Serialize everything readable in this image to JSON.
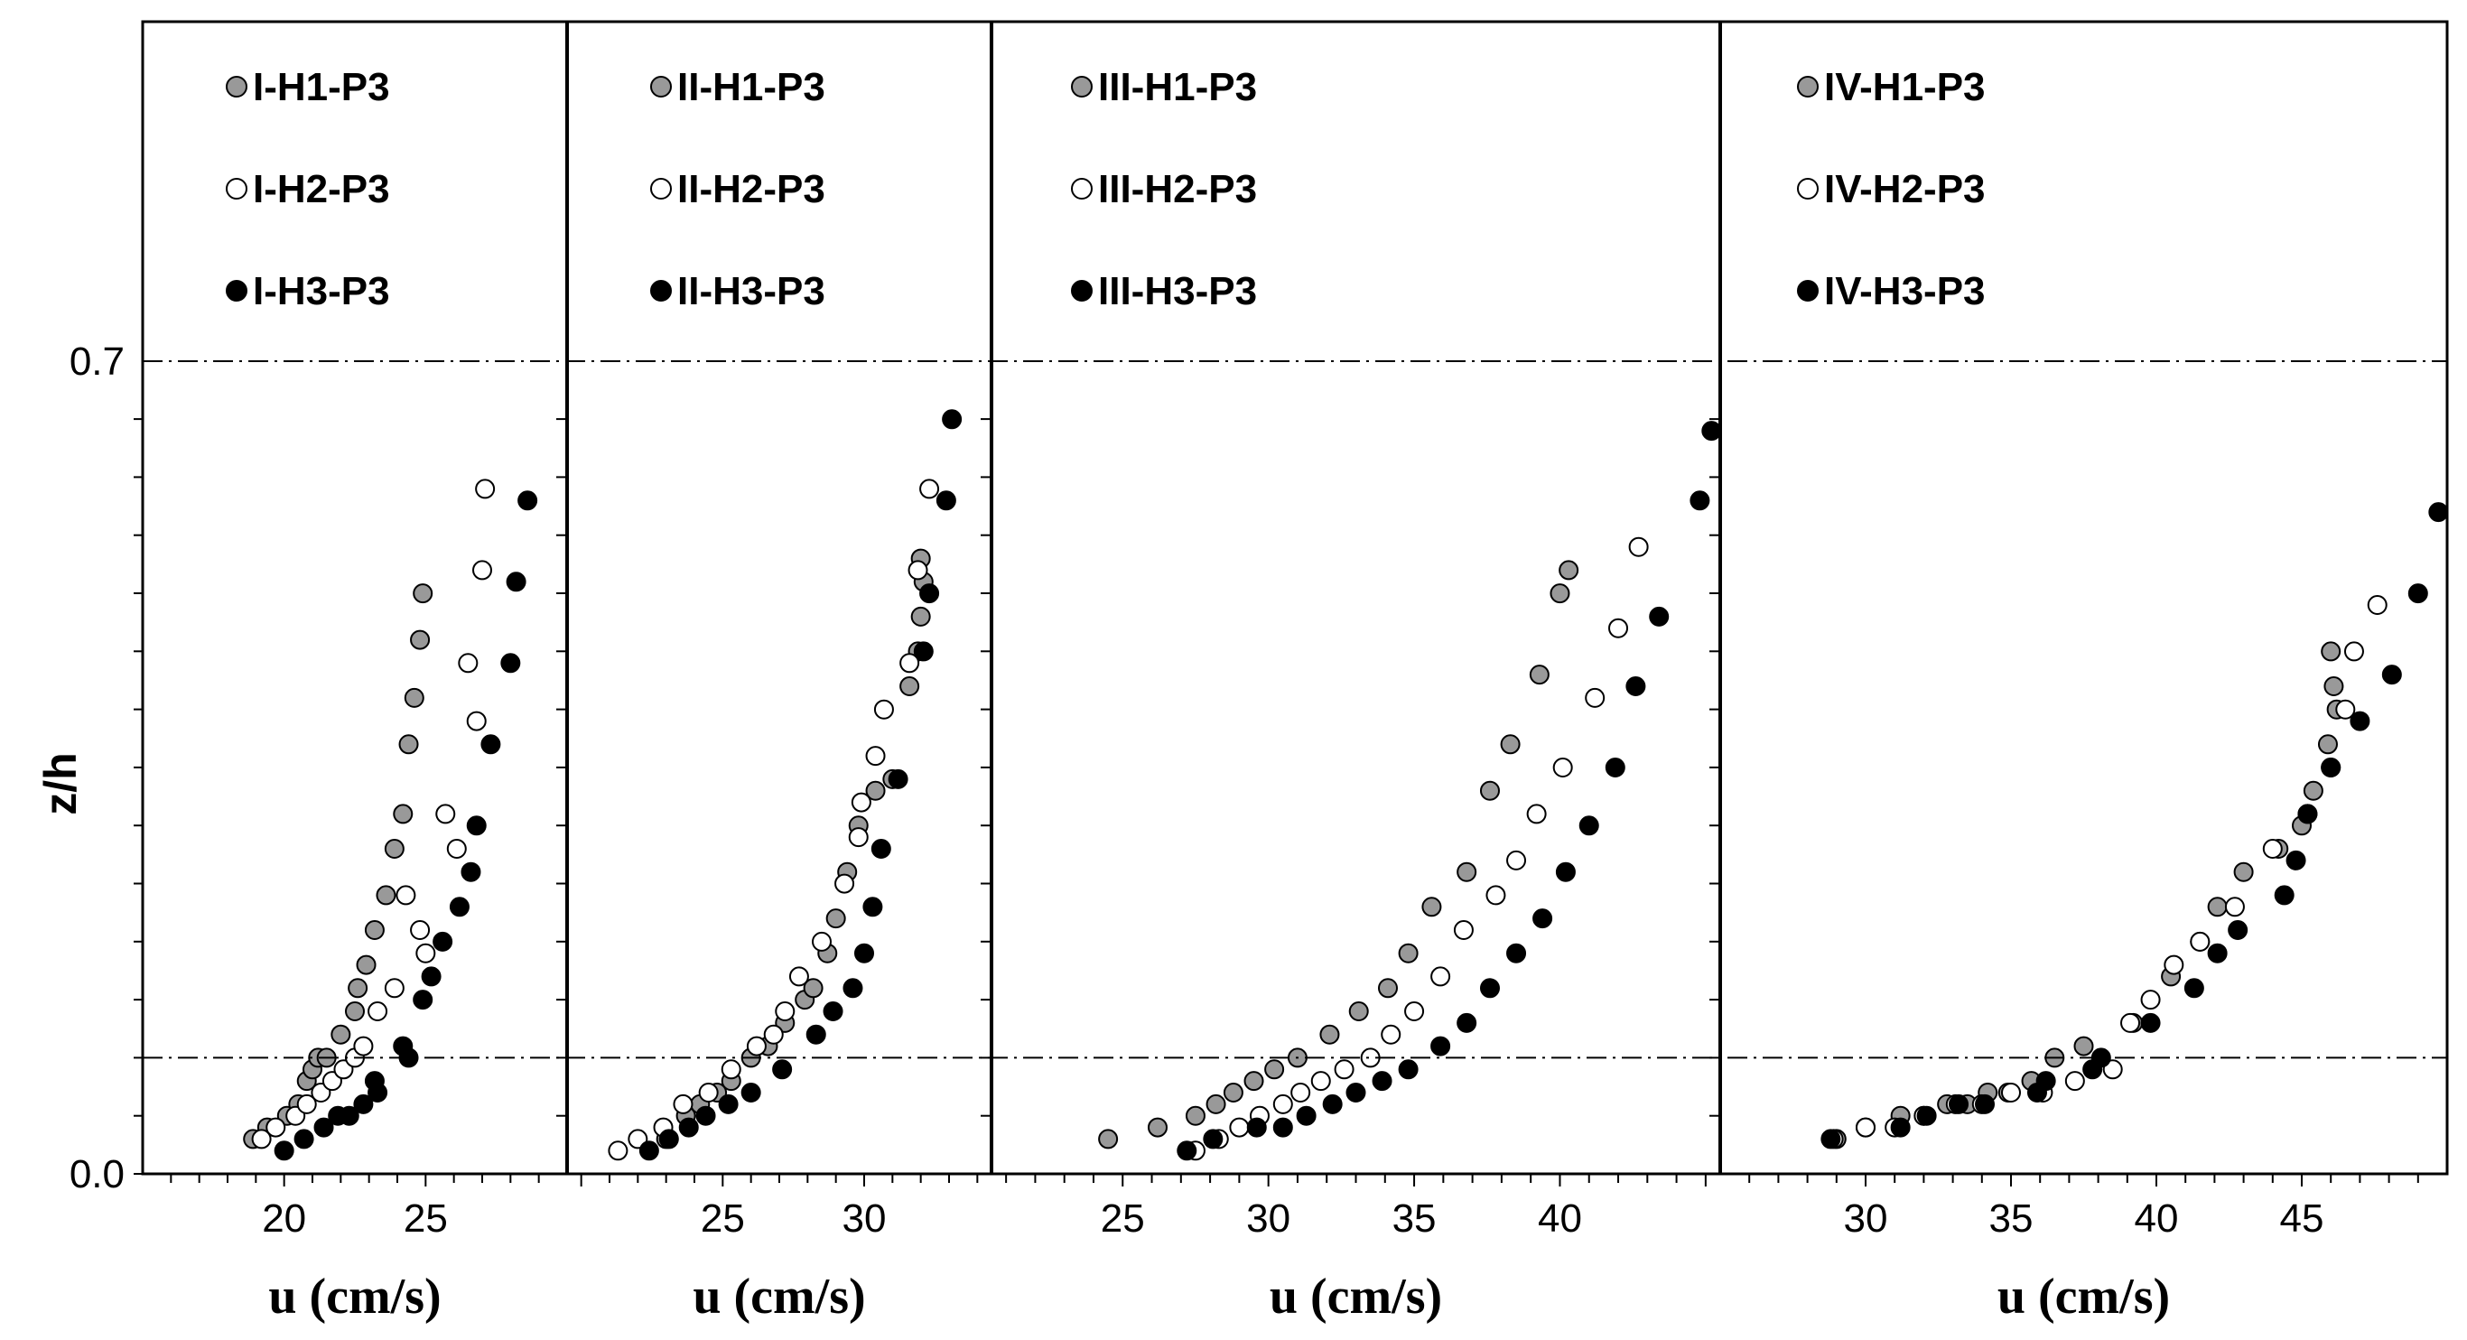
{
  "chart_data": {
    "type": "scatter",
    "ylabel": "z/h",
    "ylim": [
      0.0,
      0.98
    ],
    "y_ticks": [
      "0.0",
      "0.7"
    ],
    "reference_lines_z": [
      0.1,
      0.7
    ],
    "marker_colors": {
      "H1": "#999999",
      "H2": "#ffffff",
      "H3": "#000000"
    },
    "panels": [
      {
        "xlabel": "u (cm/s)",
        "xlim": [
          15,
          30
        ],
        "x_ticks": [
          "20",
          "25"
        ],
        "series": [
          {
            "name": "I-H1-P3",
            "x": [
              18.9,
              19.4,
              20.1,
              20.5,
              20.8,
              21.0,
              21.2,
              21.5,
              22.0,
              22.5,
              22.6,
              22.9,
              23.2,
              23.6,
              23.9,
              24.2,
              24.4,
              24.6,
              24.8,
              24.9
            ],
            "y": [
              0.03,
              0.04,
              0.05,
              0.06,
              0.08,
              0.09,
              0.1,
              0.1,
              0.12,
              0.14,
              0.16,
              0.18,
              0.21,
              0.24,
              0.28,
              0.31,
              0.37,
              0.41,
              0.46,
              0.5
            ]
          },
          {
            "name": "I-H2-P3",
            "x": [
              19.2,
              19.7,
              20.4,
              20.8,
              21.3,
              21.7,
              22.1,
              22.5,
              22.8,
              23.3,
              23.9,
              24.3,
              24.8,
              25.0,
              25.7,
              26.1,
              26.5,
              26.8,
              27.0,
              27.1
            ],
            "y": [
              0.03,
              0.04,
              0.05,
              0.06,
              0.07,
              0.08,
              0.09,
              0.1,
              0.11,
              0.14,
              0.16,
              0.24,
              0.21,
              0.19,
              0.31,
              0.28,
              0.44,
              0.39,
              0.52,
              0.59
            ]
          },
          {
            "name": "I-H3-P3",
            "x": [
              20.0,
              20.7,
              21.4,
              21.9,
              22.3,
              22.8,
              23.3,
              23.2,
              24.2,
              24.4,
              24.9,
              25.2,
              25.6,
              26.2,
              26.6,
              26.8,
              27.3,
              28.0,
              28.2,
              28.6
            ],
            "y": [
              0.02,
              0.03,
              0.04,
              0.05,
              0.05,
              0.06,
              0.07,
              0.08,
              0.11,
              0.1,
              0.15,
              0.17,
              0.2,
              0.23,
              0.26,
              0.3,
              0.37,
              0.44,
              0.51,
              0.58
            ]
          }
        ]
      },
      {
        "xlabel": "u (cm/s)",
        "xlim": [
          19.5,
          34.5
        ],
        "x_ticks": [
          "25",
          "30"
        ],
        "series": [
          {
            "name": "II-H1-P3",
            "x": [
              23.0,
              23.7,
              24.2,
              24.8,
              25.3,
              26.0,
              26.6,
              27.2,
              27.9,
              28.2,
              28.7,
              29.0,
              29.4,
              29.8,
              30.4,
              31.0,
              31.6,
              31.9,
              32.0,
              32.1,
              32.0
            ],
            "y": [
              0.03,
              0.05,
              0.06,
              0.07,
              0.08,
              0.1,
              0.11,
              0.13,
              0.15,
              0.16,
              0.19,
              0.22,
              0.26,
              0.3,
              0.33,
              0.34,
              0.42,
              0.45,
              0.48,
              0.51,
              0.53
            ]
          },
          {
            "name": "II-H2-P3",
            "x": [
              21.3,
              22.0,
              22.9,
              23.6,
              24.5,
              25.3,
              26.2,
              26.8,
              27.2,
              27.7,
              28.5,
              29.3,
              29.8,
              29.9,
              30.4,
              30.7,
              31.6,
              31.9,
              32.3
            ],
            "y": [
              0.02,
              0.03,
              0.04,
              0.06,
              0.07,
              0.09,
              0.11,
              0.12,
              0.14,
              0.17,
              0.2,
              0.25,
              0.29,
              0.32,
              0.36,
              0.4,
              0.44,
              0.52,
              0.59
            ]
          },
          {
            "name": "II-H3-P3",
            "x": [
              22.4,
              23.1,
              23.8,
              24.4,
              25.2,
              26.0,
              27.1,
              28.3,
              28.9,
              29.6,
              30.0,
              30.3,
              30.6,
              31.2,
              32.1,
              32.3,
              32.9,
              33.1
            ],
            "y": [
              0.02,
              0.03,
              0.04,
              0.05,
              0.06,
              0.07,
              0.09,
              0.12,
              0.14,
              0.16,
              0.19,
              0.23,
              0.28,
              0.34,
              0.45,
              0.5,
              0.58,
              0.65
            ]
          }
        ]
      },
      {
        "xlabel": "u (cm/s)",
        "xlim": [
          20.5,
          45.5
        ],
        "x_ticks": [
          "25",
          "30",
          "35",
          "40"
        ],
        "series": [
          {
            "name": "III-H1-P3",
            "x": [
              24.5,
              26.2,
              27.5,
              28.2,
              28.8,
              29.5,
              30.2,
              31.0,
              32.1,
              33.1,
              34.1,
              34.8,
              35.6,
              36.8,
              37.6,
              38.3,
              39.3,
              40.0,
              40.3
            ],
            "y": [
              0.03,
              0.04,
              0.05,
              0.06,
              0.07,
              0.08,
              0.09,
              0.1,
              0.12,
              0.14,
              0.16,
              0.19,
              0.23,
              0.26,
              0.33,
              0.37,
              0.43,
              0.5,
              0.52
            ]
          },
          {
            "name": "III-H2-P3",
            "x": [
              27.5,
              28.3,
              29.0,
              29.7,
              30.5,
              31.1,
              31.8,
              32.6,
              33.5,
              34.2,
              35.0,
              35.9,
              36.7,
              37.8,
              38.5,
              39.2,
              40.1,
              41.2,
              42.0,
              42.7
            ],
            "y": [
              0.02,
              0.03,
              0.04,
              0.05,
              0.06,
              0.07,
              0.08,
              0.09,
              0.1,
              0.12,
              0.14,
              0.17,
              0.21,
              0.24,
              0.27,
              0.31,
              0.35,
              0.41,
              0.47,
              0.54
            ]
          },
          {
            "name": "III-H3-P3",
            "x": [
              27.2,
              28.1,
              29.6,
              30.5,
              31.3,
              32.2,
              33.0,
              33.9,
              34.8,
              35.9,
              36.8,
              37.6,
              38.5,
              39.4,
              40.2,
              41.0,
              41.9,
              42.6,
              43.4,
              44.8,
              45.2
            ],
            "y": [
              0.02,
              0.03,
              0.04,
              0.04,
              0.05,
              0.06,
              0.07,
              0.08,
              0.09,
              0.11,
              0.13,
              0.16,
              0.19,
              0.22,
              0.26,
              0.3,
              0.35,
              0.42,
              0.48,
              0.58,
              0.64
            ]
          }
        ]
      },
      {
        "xlabel": "u (cm/s)",
        "xlim": [
          25,
          50
        ],
        "x_ticks": [
          "30",
          "35",
          "40",
          "45"
        ],
        "series": [
          {
            "name": "IV-H1-P3",
            "x": [
              29.0,
              30.0,
              31.2,
              32.0,
              32.8,
              33.5,
              34.2,
              34.9,
              35.7,
              36.5,
              37.5,
              39.2,
              40.5,
              41.5,
              42.1,
              43.0,
              44.2,
              45.0,
              45.4,
              45.9,
              46.2,
              46.1,
              46.0
            ],
            "y": [
              0.03,
              0.04,
              0.05,
              0.05,
              0.06,
              0.06,
              0.07,
              0.07,
              0.08,
              0.1,
              0.11,
              0.13,
              0.17,
              0.2,
              0.23,
              0.26,
              0.28,
              0.3,
              0.33,
              0.37,
              0.4,
              0.42,
              0.45
            ]
          },
          {
            "name": "IV-H2-P3",
            "x": [
              28.9,
              30.0,
              31.0,
              32.0,
              33.1,
              34.0,
              35.0,
              36.1,
              37.2,
              38.5,
              39.1,
              39.8,
              40.6,
              41.5,
              42.7,
              44.0,
              45.2,
              46.0,
              46.5,
              46.8,
              47.6
            ],
            "y": [
              0.03,
              0.04,
              0.04,
              0.05,
              0.06,
              0.06,
              0.07,
              0.07,
              0.08,
              0.09,
              0.13,
              0.15,
              0.18,
              0.2,
              0.23,
              0.28,
              0.31,
              0.35,
              0.4,
              0.45,
              0.49
            ]
          },
          {
            "name": "IV-H3-P3",
            "x": [
              28.8,
              31.2,
              32.1,
              33.2,
              34.1,
              35.9,
              36.2,
              37.8,
              38.1,
              39.8,
              41.3,
              42.1,
              42.8,
              44.4,
              44.8,
              45.2,
              46.0,
              47.0,
              48.1,
              49.0,
              49.7
            ],
            "y": [
              0.03,
              0.04,
              0.05,
              0.06,
              0.06,
              0.07,
              0.08,
              0.09,
              0.1,
              0.13,
              0.16,
              0.19,
              0.21,
              0.24,
              0.27,
              0.31,
              0.35,
              0.39,
              0.43,
              0.5,
              0.57
            ]
          }
        ]
      }
    ]
  }
}
